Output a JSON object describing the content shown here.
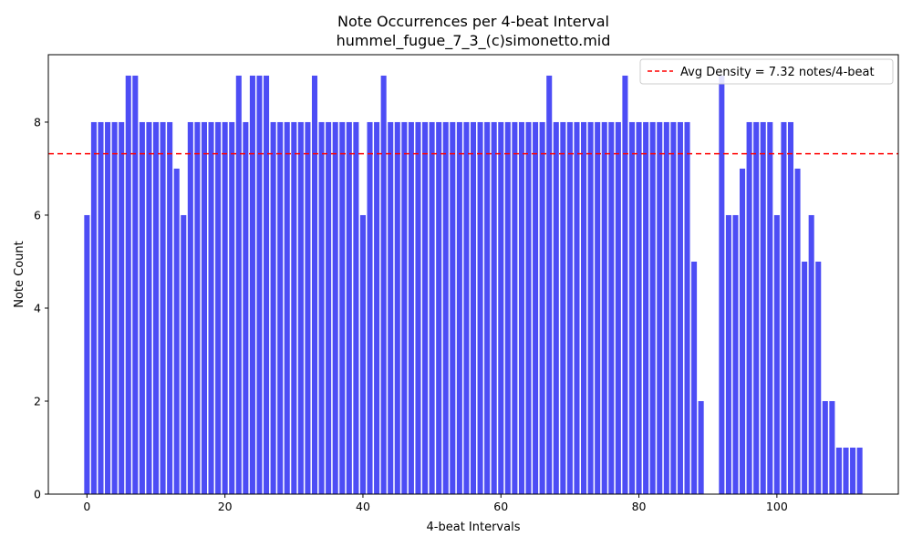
{
  "chart_data": {
    "type": "bar",
    "title": "Note Occurrences per 4-beat Interval",
    "subtitle": "hummel_fugue_7_3_(c)simonetto.mid",
    "xlabel": "4-beat Intervals",
    "ylabel": "Note Count",
    "xlim": [
      -5.6,
      117.6
    ],
    "ylim": [
      0,
      9.45
    ],
    "xticks": [
      0,
      20,
      40,
      60,
      80,
      100
    ],
    "yticks": [
      0,
      2,
      4,
      6,
      8
    ],
    "grid": false,
    "legend_position": "top-right",
    "bar_color": "#4d4df5",
    "avg_line_color": "#ff0000",
    "avg_density": 7.32,
    "avg_legend_label": "Avg Density = 7.32 notes/4-beat",
    "x": [
      0,
      1,
      2,
      3,
      4,
      5,
      6,
      7,
      8,
      9,
      10,
      11,
      12,
      13,
      14,
      15,
      16,
      17,
      18,
      19,
      20,
      21,
      22,
      23,
      24,
      25,
      26,
      27,
      28,
      29,
      30,
      31,
      32,
      33,
      34,
      35,
      36,
      37,
      38,
      39,
      40,
      41,
      42,
      43,
      44,
      45,
      46,
      47,
      48,
      49,
      50,
      51,
      52,
      53,
      54,
      55,
      56,
      57,
      58,
      59,
      60,
      61,
      62,
      63,
      64,
      65,
      66,
      67,
      68,
      69,
      70,
      71,
      72,
      73,
      74,
      75,
      76,
      77,
      78,
      79,
      80,
      81,
      82,
      83,
      84,
      85,
      86,
      87,
      88,
      89,
      90,
      91,
      92,
      93,
      94,
      95,
      96,
      97,
      98,
      99,
      100,
      101,
      102,
      103,
      104,
      105,
      106,
      107,
      108,
      109,
      110,
      111,
      112
    ],
    "values": [
      6,
      8,
      8,
      8,
      8,
      8,
      9,
      9,
      8,
      8,
      8,
      8,
      8,
      7,
      6,
      8,
      8,
      8,
      8,
      8,
      8,
      8,
      9,
      8,
      9,
      9,
      9,
      8,
      8,
      8,
      8,
      8,
      8,
      9,
      8,
      8,
      8,
      8,
      8,
      8,
      6,
      8,
      8,
      9,
      8,
      8,
      8,
      8,
      8,
      8,
      8,
      8,
      8,
      8,
      8,
      8,
      8,
      8,
      8,
      8,
      8,
      8,
      8,
      8,
      8,
      8,
      8,
      9,
      8,
      8,
      8,
      8,
      8,
      8,
      8,
      8,
      8,
      8,
      9,
      8,
      8,
      8,
      8,
      8,
      8,
      8,
      8,
      8,
      5,
      2,
      0,
      0,
      9,
      6,
      6,
      7,
      8,
      8,
      8,
      8,
      6,
      8,
      8,
      7,
      5,
      6,
      5,
      2,
      2,
      1,
      1,
      1,
      1
    ]
  }
}
